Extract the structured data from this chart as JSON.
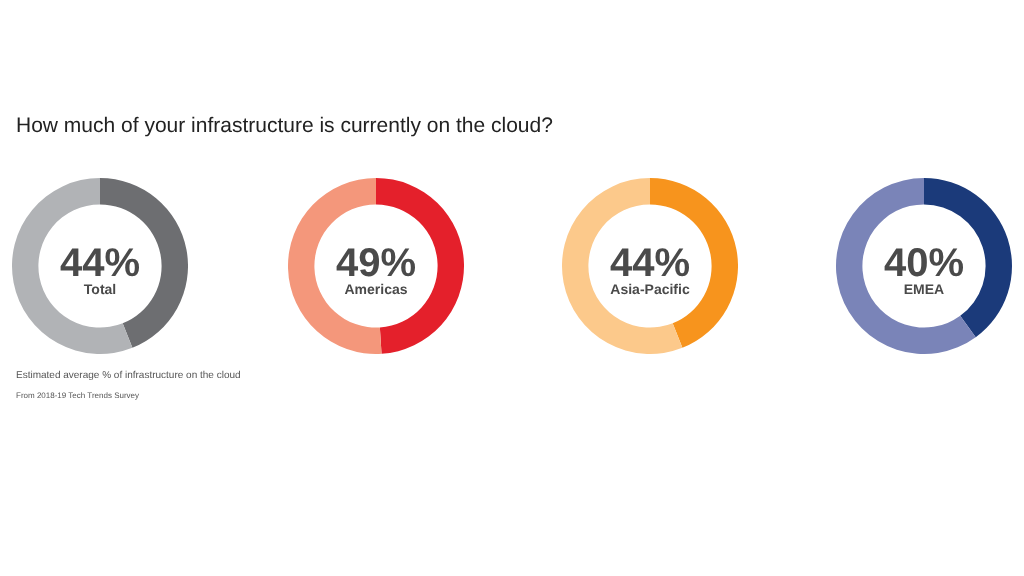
{
  "chart_data": [
    {
      "type": "donut",
      "title": "Total",
      "categories": [
        null,
        null
      ],
      "values": [
        44,
        56
      ],
      "colors": [
        "#6d6e71",
        "#b1b3b6"
      ],
      "value_labels": [
        "44%",
        null
      ],
      "annotations": [
        "How much of your infrastructure is currently on the cloud?",
        "Estimated average % of infrastructure on the cloud",
        "From 2018-19 Tech Trends Survey"
      ]
    },
    {
      "type": "donut",
      "title": "Americas",
      "categories": [
        null,
        null
      ],
      "values": [
        49,
        51
      ],
      "colors": [
        "#e4202b",
        "#f4977b"
      ],
      "value_labels": [
        "49%",
        null
      ]
    },
    {
      "type": "donut",
      "title": "Asia-Pacific",
      "categories": [
        null,
        null
      ],
      "values": [
        44,
        56
      ],
      "colors": [
        "#f7941d",
        "#fcc98b"
      ],
      "value_labels": [
        "44%",
        null
      ]
    },
    {
      "type": "donut",
      "title": "EMEA",
      "categories": [
        null,
        null
      ],
      "values": [
        40,
        60
      ],
      "colors": [
        "#1b3a7a",
        "#7a84b8"
      ],
      "value_labels": [
        "40%",
        null
      ]
    }
  ]
}
